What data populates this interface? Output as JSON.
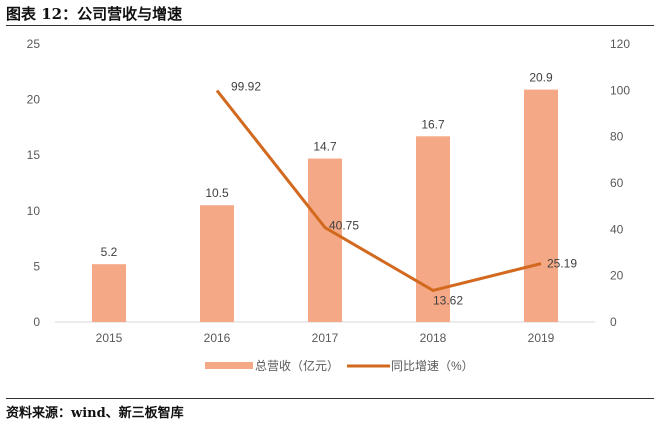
{
  "title": "图表 12：公司营收与增速",
  "source": "资料来源：wind、新三板智库",
  "chart_data": {
    "type": "bar+line",
    "categories": [
      "2015",
      "2016",
      "2017",
      "2018",
      "2019"
    ],
    "series": [
      {
        "name": "总营收（亿元）",
        "type": "bar",
        "axis": "left",
        "values": [
          5.2,
          10.5,
          14.7,
          16.7,
          20.9
        ],
        "labels": [
          "5.2",
          "10.5",
          "14.7",
          "16.7",
          "20.9"
        ],
        "color": "#F4A886"
      },
      {
        "name": "同比增速（%）",
        "type": "line",
        "axis": "right",
        "values": [
          null,
          99.92,
          40.75,
          13.62,
          25.19
        ],
        "labels": [
          "",
          "99.92",
          "40.75",
          "13.62",
          "25.19"
        ],
        "color": "#D2691E"
      }
    ],
    "left_axis": {
      "ylim": [
        0,
        25
      ],
      "ticks": [
        "0",
        "5",
        "10",
        "15",
        "20",
        "25"
      ]
    },
    "right_axis": {
      "ylim": [
        0,
        120
      ],
      "ticks": [
        "0",
        "20",
        "40",
        "60",
        "80",
        "100",
        "120"
      ]
    },
    "grid": false,
    "legend": "bottom"
  }
}
